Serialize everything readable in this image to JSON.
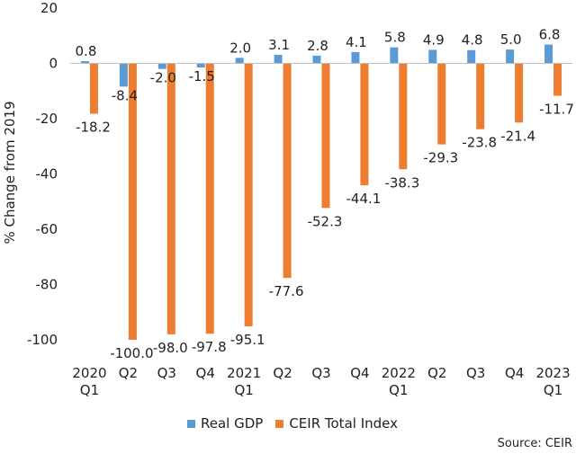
{
  "chart_data": {
    "type": "bar",
    "categories": [
      [
        "2020",
        "Q1"
      ],
      [
        "Q2"
      ],
      [
        "Q3"
      ],
      [
        "Q4"
      ],
      [
        "2021",
        "Q1"
      ],
      [
        "Q2"
      ],
      [
        "Q3"
      ],
      [
        "Q4"
      ],
      [
        "2022",
        "Q1"
      ],
      [
        "Q2"
      ],
      [
        "Q3"
      ],
      [
        "Q4"
      ],
      [
        "2023",
        "Q1"
      ]
    ],
    "series": [
      {
        "name": "Real GDP",
        "color": "#5b9bd5",
        "values": [
          0.8,
          -8.4,
          -2.0,
          -1.5,
          2.0,
          3.1,
          2.8,
          4.1,
          5.8,
          4.9,
          4.8,
          5.0,
          6.8
        ],
        "labels": [
          "0.8",
          "-8.4",
          "-2.0",
          "-1.5",
          "2.0",
          "3.1",
          "2.8",
          "4.1",
          "5.8",
          "4.9",
          "4.8",
          "5.0",
          "6.8"
        ]
      },
      {
        "name": "CEIR Total Index",
        "color": "#ed7d31",
        "values": [
          -18.2,
          -100.0,
          -98.0,
          -97.8,
          -95.1,
          -77.6,
          -52.3,
          -44.1,
          -38.3,
          -29.3,
          -23.8,
          -21.4,
          -11.7
        ],
        "labels": [
          "-18.2",
          "-100.0",
          "-98.0",
          "-97.8",
          "-95.1",
          "-77.6",
          "-52.3",
          "-44.1",
          "-38.3",
          "-29.3",
          "-23.8",
          "-21.4",
          "-11.7"
        ]
      }
    ],
    "title": "",
    "xlabel": "",
    "ylabel": "% Change from 2019",
    "ylim": [
      -100,
      20
    ],
    "yticks": [
      "20",
      "0",
      "-20",
      "-40",
      "-60",
      "-80",
      "-100"
    ],
    "grid": false,
    "legend_position": "bottom"
  },
  "source_note": "Source: CEIR"
}
